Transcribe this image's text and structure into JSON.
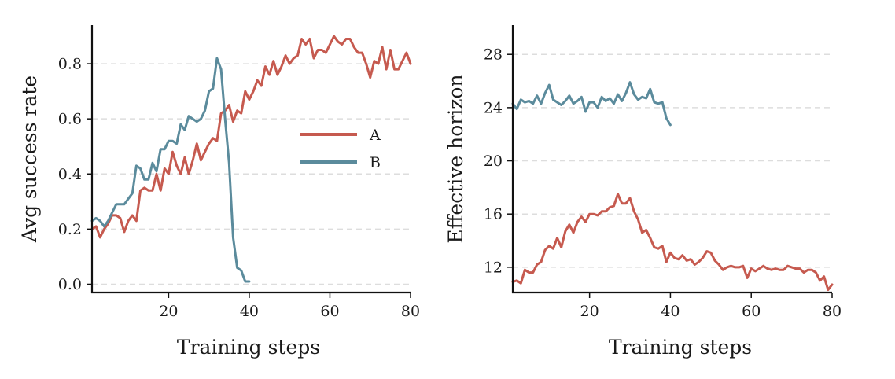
{
  "colors": {
    "A": "#c65a4f",
    "B": "#5b8b9c",
    "grid": "#dddddd",
    "axis": "#111111"
  },
  "chart_data": [
    {
      "type": "line",
      "title": "",
      "xlabel": "Training steps",
      "ylabel": "Avg success rate",
      "xlim": [
        1,
        80
      ],
      "ylim": [
        -0.03,
        0.94
      ],
      "xticks": [
        20,
        40,
        60,
        80
      ],
      "yticks": [
        0.0,
        0.2,
        0.4,
        0.6,
        0.8
      ],
      "ytick_labels": [
        "0.0",
        "0.2",
        "0.4",
        "0.6",
        "0.8"
      ],
      "grid": "horizontal dashed",
      "legend": "center-right",
      "series": [
        {
          "name": "A",
          "x": [
            1,
            2,
            3,
            4,
            5,
            6,
            7,
            8,
            9,
            10,
            11,
            12,
            13,
            14,
            15,
            16,
            17,
            18,
            19,
            20,
            21,
            22,
            23,
            24,
            25,
            26,
            27,
            28,
            29,
            30,
            31,
            32,
            33,
            34,
            35,
            36,
            37,
            38,
            39,
            40,
            41,
            42,
            43,
            44,
            45,
            46,
            47,
            48,
            49,
            50,
            51,
            52,
            53,
            54,
            55,
            56,
            57,
            58,
            59,
            60,
            61,
            62,
            63,
            64,
            65,
            66,
            67,
            68,
            69,
            70,
            71,
            72,
            73,
            74,
            75,
            76,
            77,
            78,
            79,
            80
          ],
          "y": [
            0.2,
            0.21,
            0.17,
            0.2,
            0.22,
            0.25,
            0.25,
            0.24,
            0.19,
            0.23,
            0.25,
            0.23,
            0.34,
            0.35,
            0.34,
            0.34,
            0.4,
            0.34,
            0.42,
            0.4,
            0.48,
            0.43,
            0.4,
            0.46,
            0.4,
            0.45,
            0.51,
            0.45,
            0.48,
            0.51,
            0.53,
            0.52,
            0.62,
            0.63,
            0.65,
            0.59,
            0.63,
            0.62,
            0.7,
            0.67,
            0.7,
            0.74,
            0.72,
            0.79,
            0.76,
            0.81,
            0.76,
            0.79,
            0.83,
            0.8,
            0.82,
            0.83,
            0.89,
            0.87,
            0.89,
            0.82,
            0.85,
            0.85,
            0.84,
            0.87,
            0.9,
            0.88,
            0.87,
            0.89,
            0.89,
            0.86,
            0.84,
            0.84,
            0.8,
            0.75,
            0.81,
            0.8,
            0.86,
            0.78,
            0.85,
            0.78,
            0.78,
            0.81,
            0.84,
            0.8
          ]
        },
        {
          "name": "B",
          "x": [
            1,
            2,
            3,
            4,
            5,
            6,
            7,
            8,
            9,
            10,
            11,
            12,
            13,
            14,
            15,
            16,
            17,
            18,
            19,
            20,
            21,
            22,
            23,
            24,
            25,
            26,
            27,
            28,
            29,
            30,
            31,
            32,
            33,
            34,
            35,
            36,
            37,
            38,
            39,
            40
          ],
          "y": [
            0.23,
            0.24,
            0.23,
            0.21,
            0.23,
            0.26,
            0.29,
            0.29,
            0.29,
            0.31,
            0.33,
            0.43,
            0.42,
            0.38,
            0.38,
            0.44,
            0.41,
            0.49,
            0.49,
            0.52,
            0.52,
            0.51,
            0.58,
            0.56,
            0.61,
            0.6,
            0.59,
            0.6,
            0.63,
            0.7,
            0.71,
            0.82,
            0.78,
            0.6,
            0.44,
            0.17,
            0.06,
            0.05,
            0.01,
            0.01
          ]
        }
      ]
    },
    {
      "type": "line",
      "title": "",
      "xlabel": "Training steps",
      "ylabel": "Effective horizon",
      "xlim": [
        1,
        80
      ],
      "ylim": [
        10.1,
        30.2
      ],
      "xticks": [
        20,
        40,
        60,
        80
      ],
      "yticks": [
        12,
        16,
        20,
        24,
        28
      ],
      "grid": "horizontal dashed",
      "legend": "none",
      "series": [
        {
          "x": [
            1,
            2,
            3,
            4,
            5,
            6,
            7,
            8,
            9,
            10,
            11,
            12,
            13,
            14,
            15,
            16,
            17,
            18,
            19,
            20,
            21,
            22,
            23,
            24,
            25,
            26,
            27,
            28,
            29,
            30,
            31,
            32,
            33,
            34,
            35,
            36,
            37,
            38,
            39,
            40,
            41,
            42,
            43,
            44,
            45,
            46,
            47,
            48,
            49,
            50,
            51,
            52,
            53,
            54,
            55,
            56,
            57,
            58,
            59,
            60,
            61,
            62,
            63,
            64,
            65,
            66,
            67,
            68,
            69,
            70,
            71,
            72,
            73,
            74,
            75,
            76,
            77,
            78,
            79,
            80
          ],
          "y": [
            10.9,
            11.0,
            10.8,
            11.8,
            11.6,
            11.6,
            12.2,
            12.4,
            13.3,
            13.6,
            13.4,
            14.2,
            13.5,
            14.7,
            15.2,
            14.6,
            15.4,
            15.8,
            15.4,
            16.0,
            16.0,
            15.9,
            16.2,
            16.2,
            16.5,
            16.6,
            17.5,
            16.8,
            16.8,
            17.2,
            16.2,
            15.6,
            14.6,
            14.8,
            14.2,
            13.5,
            13.4,
            13.6,
            12.4,
            13.1,
            12.7,
            12.6,
            12.9,
            12.5,
            12.6,
            12.2,
            12.4,
            12.7,
            13.2,
            13.1,
            12.5,
            12.2,
            11.8,
            12.0,
            12.1,
            12.0,
            12.0,
            12.1,
            11.2,
            11.9,
            11.7,
            11.9,
            12.1,
            11.9,
            11.8,
            11.9,
            11.8,
            11.8,
            12.1,
            12.0,
            11.9,
            11.9,
            11.6,
            11.8,
            11.8,
            11.6,
            11.0,
            11.3,
            10.3,
            10.7
          ]
        },
        {
          "x": [
            1,
            2,
            3,
            4,
            5,
            6,
            7,
            8,
            9,
            10,
            11,
            12,
            13,
            14,
            15,
            16,
            17,
            18,
            19,
            20,
            21,
            22,
            23,
            24,
            25,
            26,
            27,
            28,
            29,
            30,
            31,
            32,
            33,
            34,
            35,
            36,
            37,
            38,
            39,
            40
          ],
          "y": [
            24.3,
            23.9,
            24.6,
            24.4,
            24.5,
            24.3,
            24.9,
            24.3,
            25.1,
            25.7,
            24.6,
            24.4,
            24.2,
            24.5,
            24.9,
            24.3,
            24.5,
            24.8,
            23.7,
            24.4,
            24.4,
            24.0,
            24.8,
            24.5,
            24.7,
            24.3,
            25.0,
            24.5,
            25.1,
            25.9,
            25.0,
            24.6,
            24.8,
            24.7,
            25.4,
            24.4,
            24.3,
            24.4,
            23.2,
            22.7
          ]
        }
      ]
    }
  ]
}
